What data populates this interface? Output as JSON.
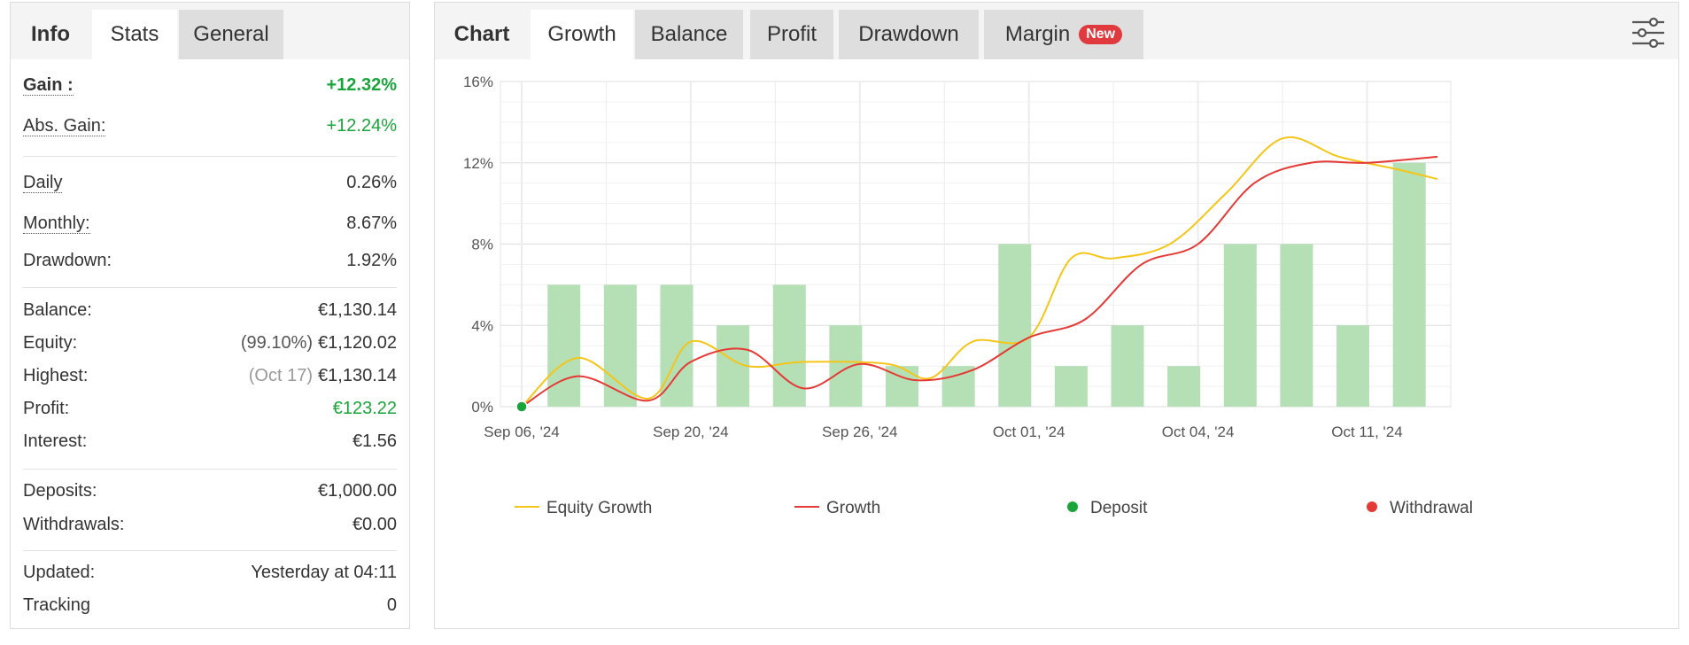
{
  "left": {
    "tabs": {
      "info": "Info",
      "stats": "Stats",
      "general": "General"
    },
    "gain": {
      "label": "Gain :",
      "value": "+12.32%"
    },
    "abs_gain": {
      "label": "Abs. Gain:",
      "value": "+12.24%"
    },
    "daily": {
      "label": "Daily",
      "value": "0.26%"
    },
    "monthly": {
      "label": "Monthly:",
      "value": "8.67%"
    },
    "drawdown": {
      "label": "Drawdown:",
      "value": "1.92%"
    },
    "balance": {
      "label": "Balance:",
      "value": "€1,130.14"
    },
    "equity": {
      "label": "Equity:",
      "pct": "(99.10%)",
      "value": "€1,120.02"
    },
    "highest": {
      "label": "Highest:",
      "date": "(Oct 17)",
      "value": "€1,130.14"
    },
    "profit": {
      "label": "Profit:",
      "value": "€123.22"
    },
    "interest": {
      "label": "Interest:",
      "value": "€1.56"
    },
    "deposits": {
      "label": "Deposits:",
      "value": "€1,000.00"
    },
    "withdrawals": {
      "label": "Withdrawals:",
      "value": "€0.00"
    },
    "updated": {
      "label": "Updated:",
      "value": "Yesterday at 04:11"
    },
    "tracking": {
      "label": "Tracking",
      "value": "0"
    }
  },
  "right": {
    "tabs": {
      "chart": "Chart",
      "growth": "Growth",
      "balance": "Balance",
      "profit": "Profit",
      "drawdown": "Drawdown",
      "margin": "Margin",
      "new_badge": "New"
    }
  },
  "colors": {
    "equity_growth": "#f5c518",
    "growth": "#e53935",
    "deposit": "#1aa53a",
    "withdrawal": "#e53935",
    "bars": "#b5dfb5",
    "gain_green": "#1aa53a"
  },
  "chart_data": {
    "type": "line",
    "ylim": [
      0,
      16
    ],
    "y_ticks": [
      "0%",
      "4%",
      "8%",
      "12%",
      "16%"
    ],
    "y_tick_values": [
      0,
      4,
      8,
      12,
      16
    ],
    "x_labels": [
      "Sep 06, '24",
      "Sep 20, '24",
      "Sep 26, '24",
      "Oct 01, '24",
      "Oct 04, '24",
      "Oct 11, '24"
    ],
    "x_label_positions": [
      0,
      6,
      12,
      18,
      24,
      30
    ],
    "x_range": [
      0,
      32.5
    ],
    "legend_position": "bottom",
    "series": [
      {
        "name": "Equity Growth",
        "x": [
          0,
          2,
          4.5,
          6,
          8,
          10,
          13,
          14.5,
          16,
          18,
          19.5,
          21,
          23,
          25,
          27,
          29,
          31,
          32.5
        ],
        "values": [
          0,
          2.4,
          0.4,
          3.2,
          2.0,
          2.2,
          2.1,
          1.4,
          3.2,
          3.4,
          7.3,
          7.3,
          8.0,
          10.5,
          13.2,
          12.3,
          11.7,
          11.2
        ]
      },
      {
        "name": "Growth",
        "x": [
          0,
          2,
          4.5,
          6,
          8,
          10,
          12,
          14,
          16,
          18,
          20,
          22,
          24,
          26,
          28,
          30,
          32.5
        ],
        "values": [
          0,
          1.5,
          0.3,
          2.2,
          2.8,
          0.9,
          2.1,
          1.3,
          1.8,
          3.4,
          4.3,
          7.0,
          8.0,
          11.0,
          12.0,
          12.0,
          12.3
        ]
      }
    ],
    "bars": {
      "name": "",
      "x": [
        1.5,
        3.5,
        5.5,
        7.5,
        9.5,
        11.5,
        13.5,
        15.5,
        17.5,
        19.5,
        21.5,
        23.5,
        25.5,
        27.5,
        29.5,
        31.5
      ],
      "values": [
        6,
        6,
        6,
        4,
        6,
        4,
        2,
        2,
        8,
        2,
        4,
        2,
        8,
        8,
        4,
        12
      ]
    },
    "markers": [
      {
        "name": "Deposit",
        "x": 0,
        "value": 0
      }
    ],
    "legend": [
      "Equity Growth",
      "Growth",
      "Deposit",
      "Withdrawal"
    ]
  }
}
